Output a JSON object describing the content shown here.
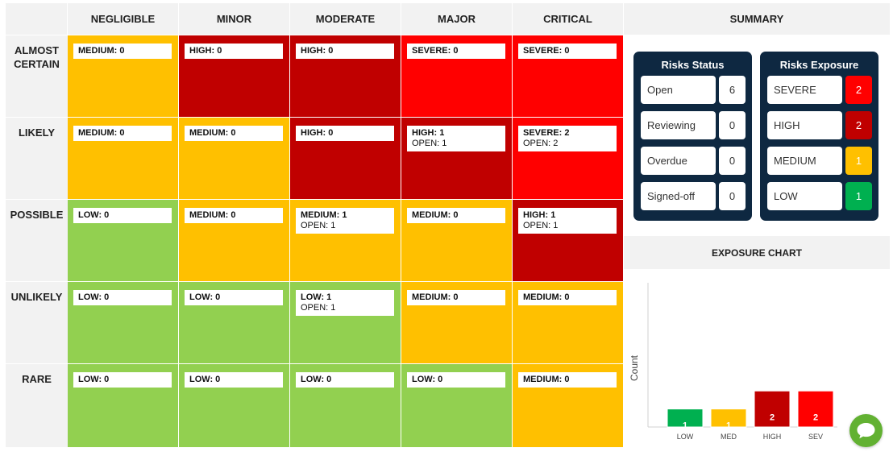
{
  "matrix": {
    "impacts": [
      "NEGLIGIBLE",
      "MINOR",
      "MODERATE",
      "MAJOR",
      "CRITICAL"
    ],
    "likelihoods": [
      "ALMOST CERTAIN",
      "LIKELY",
      "POSSIBLE",
      "UNLIKELY",
      "RARE"
    ],
    "rows": [
      [
        {
          "level": "MEDIUM: 0",
          "open": "",
          "color": "#ffc000"
        },
        {
          "level": "HIGH: 0",
          "open": "",
          "color": "#c00000"
        },
        {
          "level": "HIGH: 0",
          "open": "",
          "color": "#c00000"
        },
        {
          "level": "SEVERE: 0",
          "open": "",
          "color": "#ff0000"
        },
        {
          "level": "SEVERE: 0",
          "open": "",
          "color": "#ff0000"
        }
      ],
      [
        {
          "level": "MEDIUM: 0",
          "open": "",
          "color": "#ffc000"
        },
        {
          "level": "MEDIUM: 0",
          "open": "",
          "color": "#ffc000"
        },
        {
          "level": "HIGH: 0",
          "open": "",
          "color": "#c00000"
        },
        {
          "level": "HIGH: 1",
          "open": "OPEN: 1",
          "color": "#c00000"
        },
        {
          "level": "SEVERE: 2",
          "open": "OPEN: 2",
          "color": "#ff0000"
        }
      ],
      [
        {
          "level": "LOW: 0",
          "open": "",
          "color": "#92d050"
        },
        {
          "level": "MEDIUM: 0",
          "open": "",
          "color": "#ffc000"
        },
        {
          "level": "MEDIUM: 1",
          "open": "OPEN: 1",
          "color": "#ffc000"
        },
        {
          "level": "MEDIUM: 0",
          "open": "",
          "color": "#ffc000"
        },
        {
          "level": "HIGH: 1",
          "open": "OPEN: 1",
          "color": "#c00000"
        }
      ],
      [
        {
          "level": "LOW: 0",
          "open": "",
          "color": "#92d050"
        },
        {
          "level": "LOW: 0",
          "open": "",
          "color": "#92d050"
        },
        {
          "level": "LOW: 1",
          "open": "OPEN: 1",
          "color": "#92d050"
        },
        {
          "level": "MEDIUM: 0",
          "open": "",
          "color": "#ffc000"
        },
        {
          "level": "MEDIUM: 0",
          "open": "",
          "color": "#ffc000"
        }
      ],
      [
        {
          "level": "LOW: 0",
          "open": "",
          "color": "#92d050"
        },
        {
          "level": "LOW: 0",
          "open": "",
          "color": "#92d050"
        },
        {
          "level": "LOW: 0",
          "open": "",
          "color": "#92d050"
        },
        {
          "level": "LOW: 0",
          "open": "",
          "color": "#92d050"
        },
        {
          "level": "MEDIUM: 0",
          "open": "",
          "color": "#ffc000"
        }
      ]
    ]
  },
  "summary": {
    "title": "SUMMARY",
    "status": {
      "title": "Risks Status",
      "items": [
        {
          "label": "Open",
          "value": "6"
        },
        {
          "label": "Reviewing",
          "value": "0"
        },
        {
          "label": "Overdue",
          "value": "0"
        },
        {
          "label": "Signed-off",
          "value": "0"
        }
      ]
    },
    "exposure": {
      "title": "Risks Exposure",
      "items": [
        {
          "label": "SEVERE",
          "value": "2",
          "color": "#ff0000"
        },
        {
          "label": "HIGH",
          "value": "2",
          "color": "#c00000"
        },
        {
          "label": "MEDIUM",
          "value": "1",
          "color": "#ffc000"
        },
        {
          "label": "LOW",
          "value": "1",
          "color": "#00b050"
        }
      ]
    },
    "chart_title": "EXPOSURE CHART"
  },
  "chart_data": {
    "type": "bar",
    "categories": [
      "LOW",
      "MED",
      "HIGH",
      "SEV"
    ],
    "values": [
      1,
      1,
      2,
      2
    ],
    "colors": [
      "#00b050",
      "#ffc000",
      "#c00000",
      "#ff0000"
    ],
    "ylabel": "Count",
    "xlabel": "",
    "ylim": [
      0,
      4
    ],
    "grid": false,
    "legend": "none"
  },
  "chat": {
    "icon": "chat-bubble-icon"
  }
}
